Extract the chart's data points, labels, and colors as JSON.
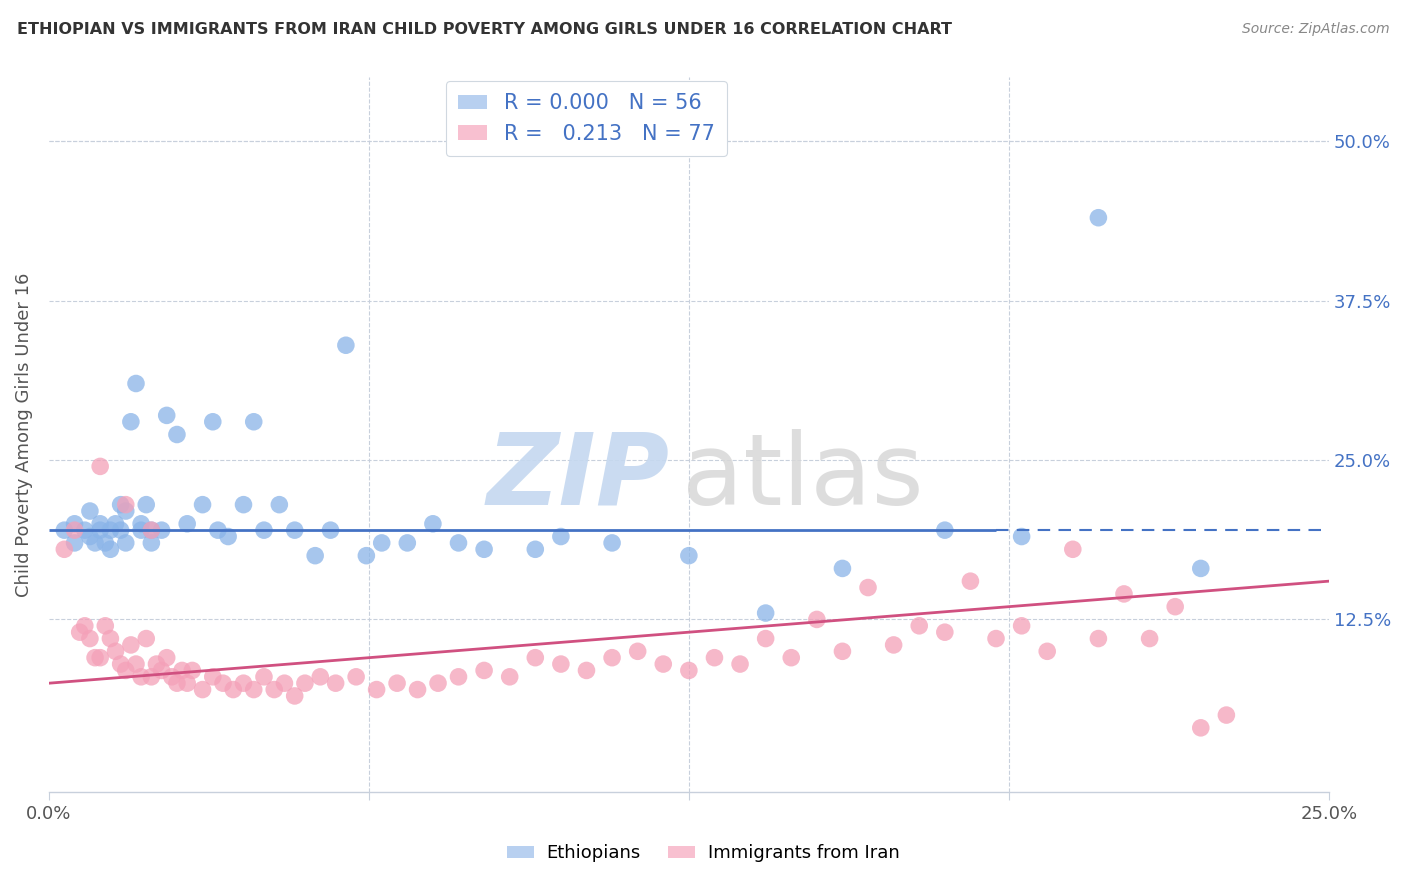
{
  "title": "ETHIOPIAN VS IMMIGRANTS FROM IRAN CHILD POVERTY AMONG GIRLS UNDER 16 CORRELATION CHART",
  "source": "Source: ZipAtlas.com",
  "ylabel": "Child Poverty Among Girls Under 16",
  "xlim": [
    0.0,
    0.25
  ],
  "ylim": [
    -0.01,
    0.55
  ],
  "blue_color": "#8ab4e8",
  "pink_color": "#f4a0b8",
  "blue_line_color": "#4472C4",
  "pink_line_color": "#d05080",
  "blue_hline_y": 0.195,
  "blue_line_solid_x1": 0.185,
  "pink_trend_x0": 0.0,
  "pink_trend_y0": 0.075,
  "pink_trend_x1": 0.25,
  "pink_trend_y1": 0.155,
  "eth_x": [
    0.003,
    0.005,
    0.005,
    0.007,
    0.008,
    0.008,
    0.009,
    0.01,
    0.01,
    0.011,
    0.012,
    0.012,
    0.013,
    0.014,
    0.014,
    0.015,
    0.015,
    0.016,
    0.017,
    0.018,
    0.018,
    0.019,
    0.02,
    0.02,
    0.022,
    0.023,
    0.025,
    0.027,
    0.03,
    0.032,
    0.033,
    0.035,
    0.038,
    0.04,
    0.042,
    0.045,
    0.048,
    0.052,
    0.055,
    0.058,
    0.062,
    0.065,
    0.07,
    0.075,
    0.08,
    0.085,
    0.095,
    0.1,
    0.11,
    0.125,
    0.14,
    0.155,
    0.175,
    0.19,
    0.205,
    0.225
  ],
  "eth_y": [
    0.195,
    0.2,
    0.185,
    0.195,
    0.19,
    0.21,
    0.185,
    0.195,
    0.2,
    0.185,
    0.195,
    0.18,
    0.2,
    0.195,
    0.215,
    0.185,
    0.21,
    0.28,
    0.31,
    0.195,
    0.2,
    0.215,
    0.185,
    0.195,
    0.195,
    0.285,
    0.27,
    0.2,
    0.215,
    0.28,
    0.195,
    0.19,
    0.215,
    0.28,
    0.195,
    0.215,
    0.195,
    0.175,
    0.195,
    0.34,
    0.175,
    0.185,
    0.185,
    0.2,
    0.185,
    0.18,
    0.18,
    0.19,
    0.185,
    0.175,
    0.13,
    0.165,
    0.195,
    0.19,
    0.44,
    0.165
  ],
  "iran_x": [
    0.003,
    0.005,
    0.006,
    0.007,
    0.008,
    0.009,
    0.01,
    0.011,
    0.012,
    0.013,
    0.014,
    0.015,
    0.016,
    0.017,
    0.018,
    0.019,
    0.02,
    0.021,
    0.022,
    0.023,
    0.024,
    0.025,
    0.026,
    0.027,
    0.028,
    0.03,
    0.032,
    0.034,
    0.036,
    0.038,
    0.04,
    0.042,
    0.044,
    0.046,
    0.048,
    0.05,
    0.053,
    0.056,
    0.06,
    0.064,
    0.068,
    0.072,
    0.076,
    0.08,
    0.085,
    0.09,
    0.095,
    0.1,
    0.105,
    0.11,
    0.115,
    0.12,
    0.125,
    0.13,
    0.135,
    0.14,
    0.145,
    0.15,
    0.155,
    0.16,
    0.165,
    0.17,
    0.175,
    0.18,
    0.185,
    0.19,
    0.195,
    0.2,
    0.205,
    0.21,
    0.215,
    0.22,
    0.225,
    0.23,
    0.01,
    0.015,
    0.02
  ],
  "iran_y": [
    0.18,
    0.195,
    0.115,
    0.12,
    0.11,
    0.095,
    0.095,
    0.12,
    0.11,
    0.1,
    0.09,
    0.085,
    0.105,
    0.09,
    0.08,
    0.11,
    0.08,
    0.09,
    0.085,
    0.095,
    0.08,
    0.075,
    0.085,
    0.075,
    0.085,
    0.07,
    0.08,
    0.075,
    0.07,
    0.075,
    0.07,
    0.08,
    0.07,
    0.075,
    0.065,
    0.075,
    0.08,
    0.075,
    0.08,
    0.07,
    0.075,
    0.07,
    0.075,
    0.08,
    0.085,
    0.08,
    0.095,
    0.09,
    0.085,
    0.095,
    0.1,
    0.09,
    0.085,
    0.095,
    0.09,
    0.11,
    0.095,
    0.125,
    0.1,
    0.15,
    0.105,
    0.12,
    0.115,
    0.155,
    0.11,
    0.12,
    0.1,
    0.18,
    0.11,
    0.145,
    0.11,
    0.135,
    0.04,
    0.05,
    0.245,
    0.215,
    0.195
  ]
}
